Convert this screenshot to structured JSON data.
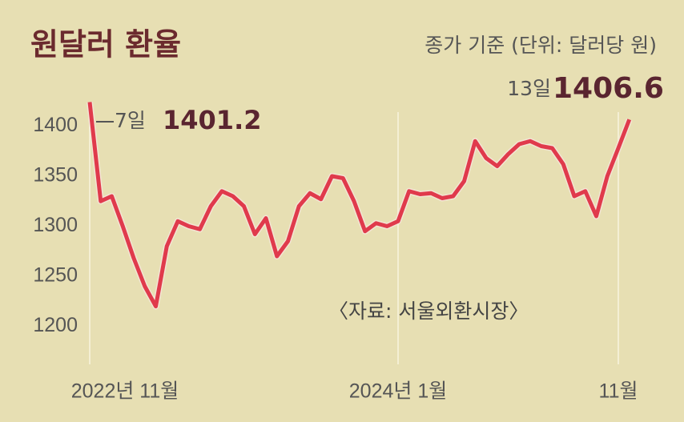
{
  "chart_data": {
    "type": "line",
    "title": "원달러 환율",
    "subtitle": "종가 기준 (단위: 달러당 원)",
    "source": "〈자료: 서울외환시장〉",
    "categories": [
      "2022년 11월",
      null,
      null,
      null,
      null,
      null,
      null,
      null,
      null,
      null,
      null,
      null,
      null,
      null,
      null,
      null,
      null,
      null,
      null,
      null,
      null,
      null,
      null,
      null,
      null,
      null,
      null,
      null,
      "2024년 1월",
      null,
      null,
      null,
      null,
      null,
      null,
      null,
      null,
      null,
      null,
      null,
      null,
      null,
      null,
      null,
      null,
      null,
      null,
      null,
      "11월",
      null
    ],
    "values": [
      1424,
      1325,
      1330,
      1300,
      1268,
      1240,
      1220,
      1280,
      1305,
      1300,
      1297,
      1320,
      1335,
      1330,
      1320,
      1292,
      1308,
      1270,
      1285,
      1320,
      1333,
      1327,
      1350,
      1348,
      1325,
      1295,
      1303,
      1300,
      1305,
      1335,
      1332,
      1333,
      1328,
      1330,
      1345,
      1385,
      1368,
      1360,
      1372,
      1382,
      1385,
      1380,
      1378,
      1362,
      1330,
      1335,
      1310,
      1350,
      1378,
      1406.6
    ],
    "color": "#e03a4c",
    "ylim": [
      1190,
      1430
    ],
    "yticks": [
      1200,
      1250,
      1300,
      1350,
      1400
    ],
    "annotations": [
      {
        "text": "7일",
        "value": 1401.2
      },
      {
        "text": "13일",
        "value": 1406.6
      }
    ]
  }
}
